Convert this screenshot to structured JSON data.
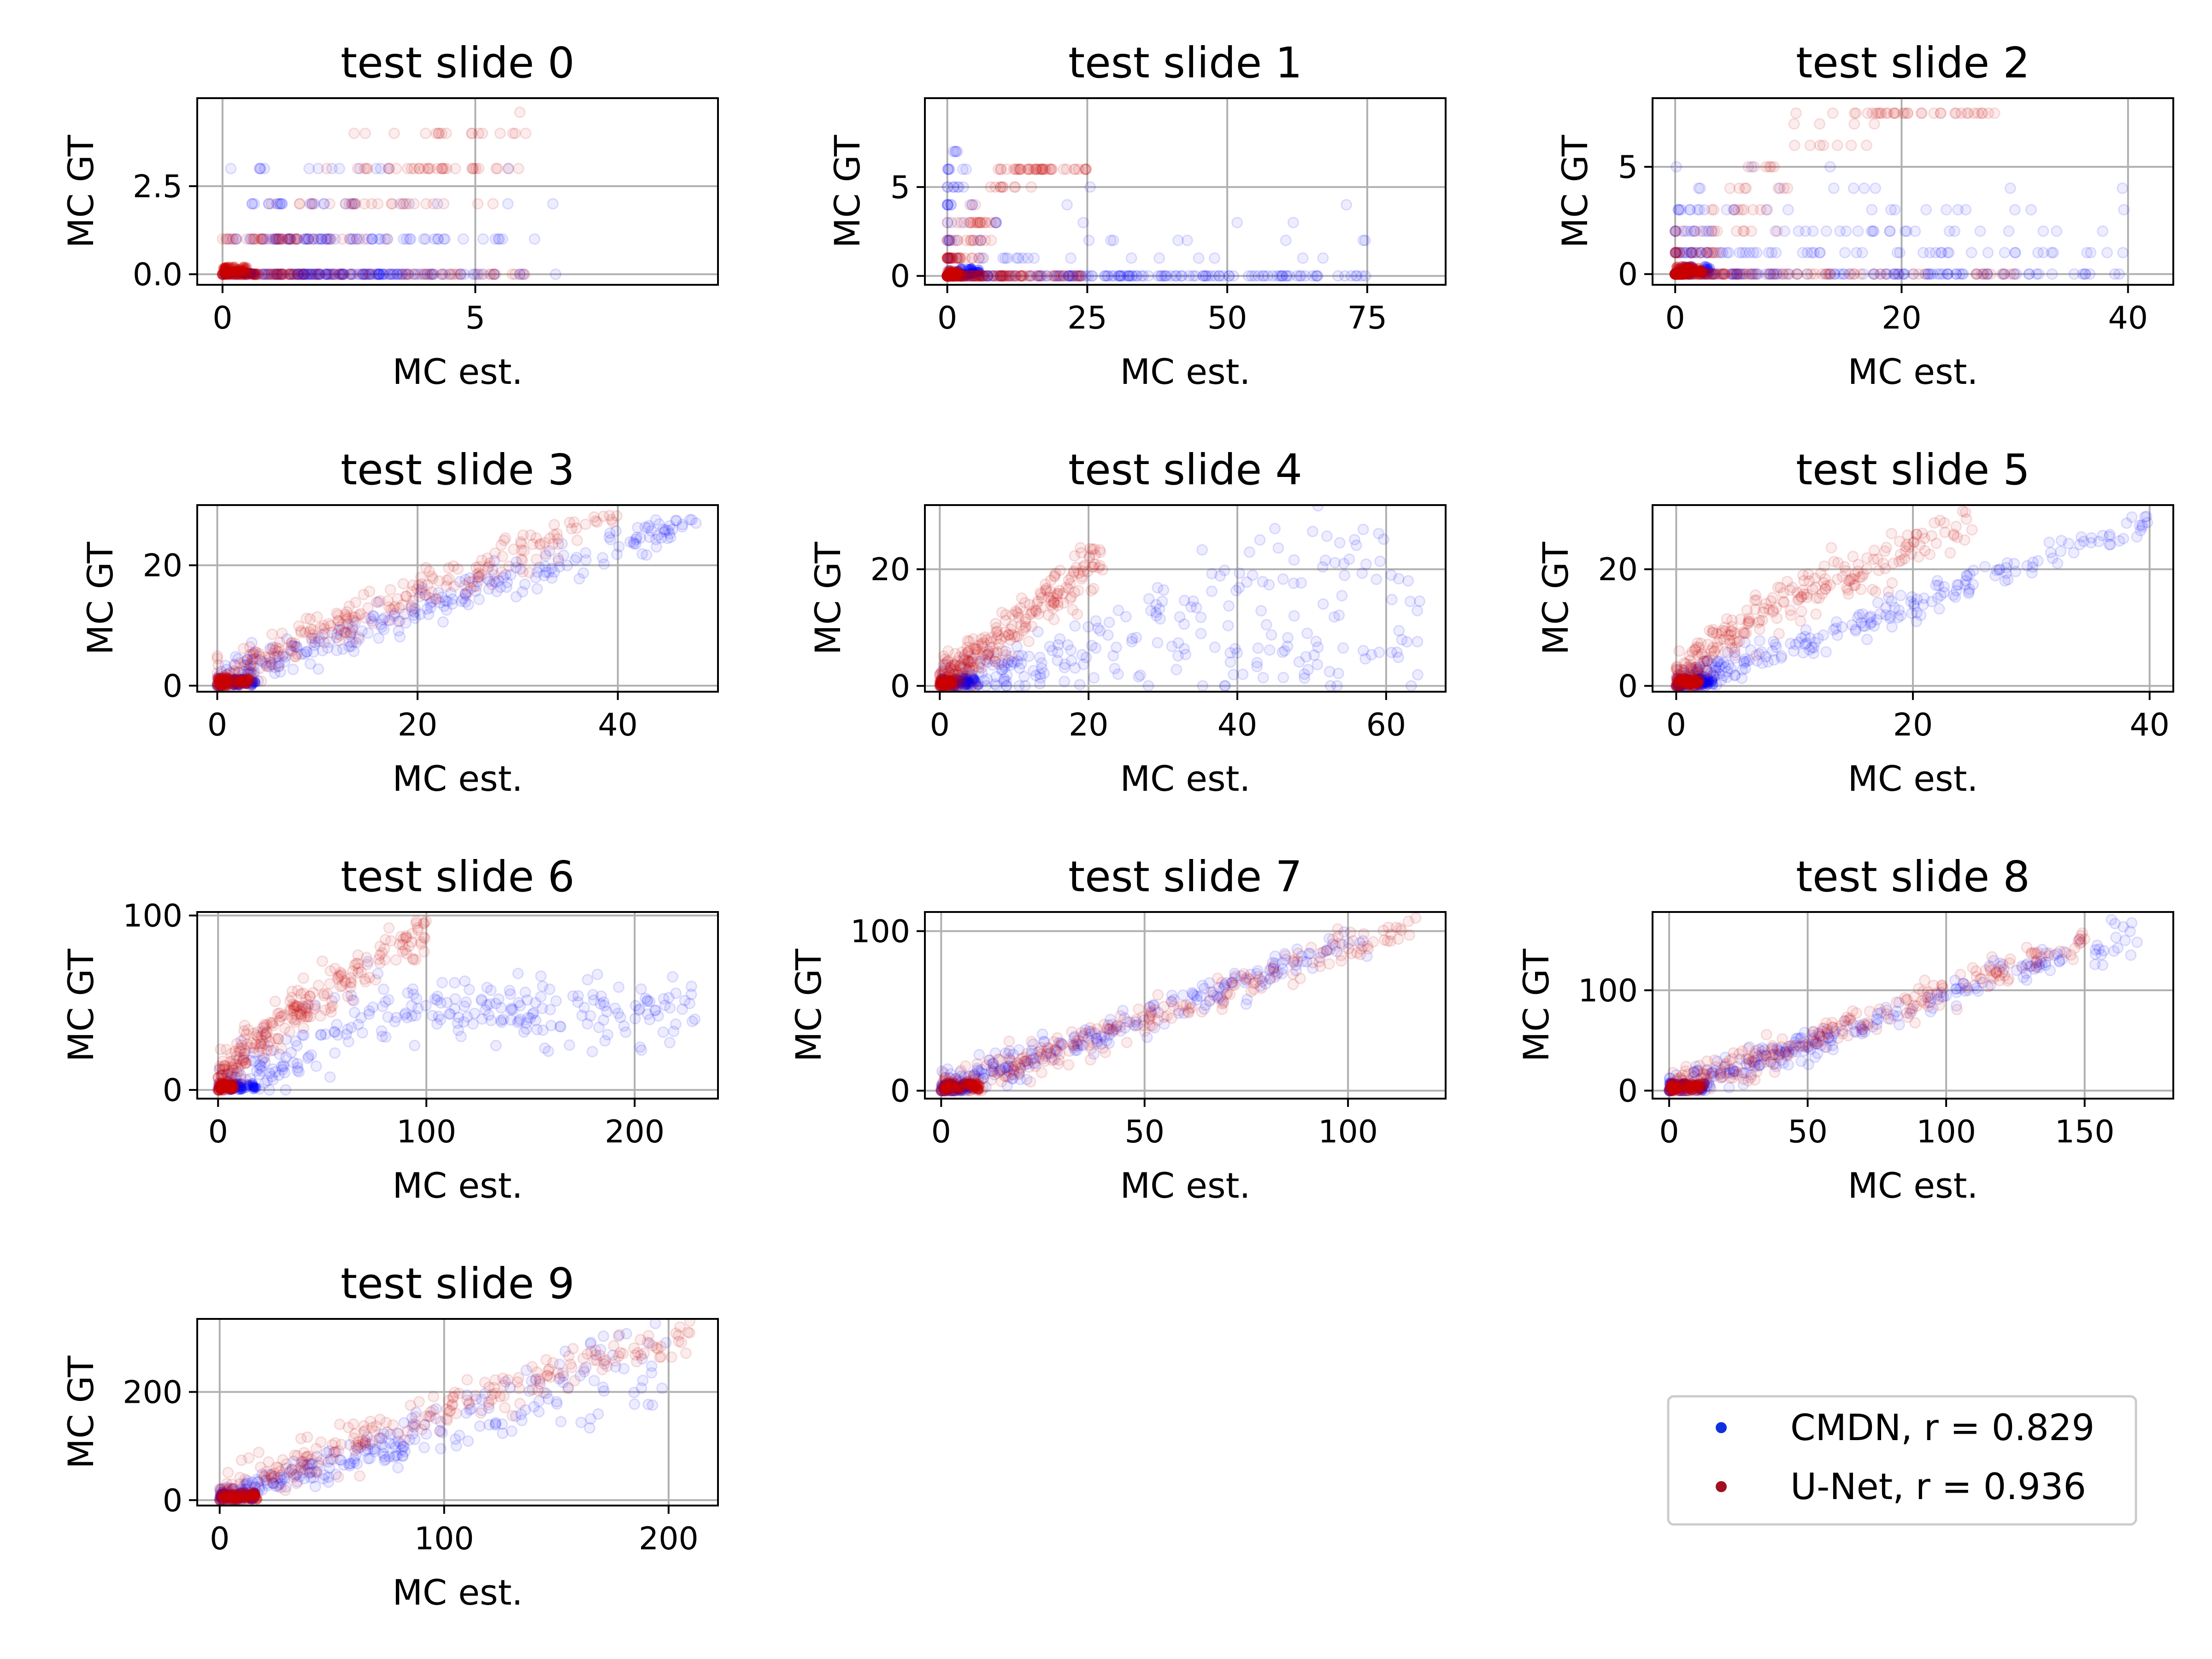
{
  "colors": {
    "cmdn": "#0000ff",
    "unet": "#cc0000",
    "legend_cmdn": "#1030e0",
    "legend_unet": "#a01020",
    "grid": "#b0b0b0"
  },
  "legend": {
    "placement": "lower-right",
    "entries": [
      {
        "label": "CMDN, r = 0.829",
        "color": "#1030e0"
      },
      {
        "label": "U-Net, r = 0.936",
        "color": "#a01020"
      }
    ]
  },
  "chart_data": [
    {
      "type": "scatter",
      "title": "test slide 0",
      "xlabel": "MC est.",
      "ylabel": "MC GT",
      "xlim": [
        -0.5,
        9.8
      ],
      "ylim": [
        -0.3,
        5.0
      ],
      "xticks": [
        0,
        5
      ],
      "xtick_labels": [
        "0",
        "5"
      ],
      "yticks": [
        0,
        2.5
      ],
      "ytick_labels": [
        "0.0",
        "2.5"
      ],
      "grid": true,
      "series": [
        {
          "name": "CMDN",
          "cluster": "zeros-and-integer-rows",
          "x_range": [
            0,
            8
          ],
          "y_values": [
            0,
            1,
            2,
            3
          ]
        },
        {
          "name": "U-Net",
          "cluster": "diagonal-spread",
          "x_range": [
            0,
            6
          ],
          "y_range": [
            0,
            4.6
          ]
        }
      ]
    },
    {
      "type": "scatter",
      "title": "test slide 1",
      "xlabel": "MC est.",
      "ylabel": "MC GT",
      "xlim": [
        -4,
        89
      ],
      "ylim": [
        -0.5,
        10
      ],
      "xticks": [
        0,
        25,
        50,
        75
      ],
      "xtick_labels": [
        "0",
        "25",
        "50",
        "75"
      ],
      "yticks": [
        0,
        5
      ],
      "ytick_labels": [
        "0",
        "5"
      ],
      "grid": true,
      "series": [
        {
          "name": "CMDN",
          "cluster": "long-zero-row",
          "x_range": [
            0,
            75
          ],
          "y_range": [
            0,
            9
          ]
        },
        {
          "name": "U-Net",
          "cluster": "steep-near-zero",
          "x_range": [
            0,
            25
          ],
          "y_range": [
            0,
            6
          ]
        }
      ]
    },
    {
      "type": "scatter",
      "title": "test slide 2",
      "xlabel": "MC est.",
      "ylabel": "MC GT",
      "xlim": [
        -2,
        44
      ],
      "ylim": [
        -0.5,
        8.2
      ],
      "xticks": [
        0,
        20,
        40
      ],
      "xtick_labels": [
        "0",
        "20",
        "40"
      ],
      "yticks": [
        0,
        5
      ],
      "ytick_labels": [
        "0",
        "5"
      ],
      "grid": true,
      "series": [
        {
          "name": "CMDN",
          "cluster": "integer-rows",
          "x_range": [
            0,
            40
          ],
          "y_range": [
            0,
            7.5
          ]
        },
        {
          "name": "U-Net",
          "cluster": "steep-near-zero",
          "x_range": [
            0,
            30
          ],
          "y_range": [
            0,
            7.5
          ]
        }
      ]
    },
    {
      "type": "scatter",
      "title": "test slide 3",
      "xlabel": "MC est.",
      "ylabel": "MC GT",
      "xlim": [
        -2,
        50
      ],
      "ylim": [
        -1,
        30
      ],
      "xticks": [
        0,
        20,
        40
      ],
      "xtick_labels": [
        "0",
        "20",
        "40"
      ],
      "yticks": [
        0,
        20
      ],
      "ytick_labels": [
        "0",
        "20"
      ],
      "grid": true,
      "series": [
        {
          "name": "CMDN",
          "cluster": "curve",
          "x_range": [
            0,
            48
          ],
          "y_range": [
            0,
            27
          ]
        },
        {
          "name": "U-Net",
          "cluster": "curve",
          "x_range": [
            0,
            40
          ],
          "y_range": [
            0,
            28
          ]
        }
      ]
    },
    {
      "type": "scatter",
      "title": "test slide 4",
      "xlabel": "MC est.",
      "ylabel": "MC GT",
      "xlim": [
        -2,
        68
      ],
      "ylim": [
        -1,
        31
      ],
      "xticks": [
        0,
        20,
        40,
        60
      ],
      "xtick_labels": [
        "0",
        "20",
        "40",
        "60"
      ],
      "yticks": [
        0,
        20
      ],
      "ytick_labels": [
        "0",
        "20"
      ],
      "grid": true,
      "series": [
        {
          "name": "CMDN",
          "cluster": "wide-spread",
          "x_range": [
            0,
            65
          ],
          "y_range": [
            0,
            28
          ]
        },
        {
          "name": "U-Net",
          "cluster": "steep-line",
          "x_range": [
            0,
            22
          ],
          "y_range": [
            0,
            22
          ]
        }
      ]
    },
    {
      "type": "scatter",
      "title": "test slide 5",
      "xlabel": "MC est.",
      "ylabel": "MC GT",
      "xlim": [
        -2,
        42
      ],
      "ylim": [
        -1,
        31
      ],
      "xticks": [
        0,
        20,
        40
      ],
      "xtick_labels": [
        "0",
        "20",
        "40"
      ],
      "yticks": [
        0,
        20
      ],
      "ytick_labels": [
        "0",
        "20"
      ],
      "grid": true,
      "series": [
        {
          "name": "CMDN",
          "cluster": "line",
          "x_range": [
            0,
            40
          ],
          "y_range": [
            0,
            28
          ]
        },
        {
          "name": "U-Net",
          "cluster": "steep-curve",
          "x_range": [
            0,
            25
          ],
          "y_range": [
            0,
            28
          ]
        }
      ]
    },
    {
      "type": "scatter",
      "title": "test slide 6",
      "xlabel": "MC est.",
      "ylabel": "MC GT",
      "xlim": [
        -10,
        240
      ],
      "ylim": [
        -5,
        102
      ],
      "xticks": [
        0,
        100,
        200
      ],
      "xtick_labels": [
        "0",
        "100",
        "200"
      ],
      "yticks": [
        0,
        100
      ],
      "ytick_labels": [
        "0",
        "100"
      ],
      "grid": true,
      "series": [
        {
          "name": "CMDN",
          "cluster": "plateau",
          "x_range": [
            0,
            230
          ],
          "y_range": [
            0,
            80
          ]
        },
        {
          "name": "U-Net",
          "cluster": "steep-curve",
          "x_range": [
            0,
            100
          ],
          "y_range": [
            0,
            90
          ]
        }
      ]
    },
    {
      "type": "scatter",
      "title": "test slide 7",
      "xlabel": "MC est.",
      "ylabel": "MC GT",
      "xlim": [
        -4,
        124
      ],
      "ylim": [
        -5,
        112
      ],
      "xticks": [
        0,
        50,
        100
      ],
      "xtick_labels": [
        "0",
        "50",
        "100"
      ],
      "yticks": [
        0,
        100
      ],
      "ytick_labels": [
        "0",
        "100"
      ],
      "grid": true,
      "series": [
        {
          "name": "CMDN",
          "cluster": "line",
          "x_range": [
            0,
            105
          ],
          "y_range": [
            0,
            95
          ]
        },
        {
          "name": "U-Net",
          "cluster": "line",
          "x_range": [
            0,
            118
          ],
          "y_range": [
            0,
            105
          ]
        }
      ]
    },
    {
      "type": "scatter",
      "title": "test slide 8",
      "xlabel": "MC est.",
      "ylabel": "MC GT",
      "xlim": [
        -6,
        182
      ],
      "ylim": [
        -8,
        178
      ],
      "xticks": [
        0,
        50,
        100,
        150
      ],
      "xtick_labels": [
        "0",
        "50",
        "100",
        "150"
      ],
      "yticks": [
        0,
        100
      ],
      "ytick_labels": [
        "0",
        "100"
      ],
      "grid": true,
      "series": [
        {
          "name": "CMDN",
          "cluster": "line",
          "x_range": [
            0,
            170
          ],
          "y_range": [
            0,
            160
          ]
        },
        {
          "name": "U-Net",
          "cluster": "line",
          "x_range": [
            0,
            150
          ],
          "y_range": [
            0,
            150
          ]
        }
      ]
    },
    {
      "type": "scatter",
      "title": "test slide 9",
      "xlabel": "MC est.",
      "ylabel": "MC GT",
      "xlim": [
        -10,
        222
      ],
      "ylim": [
        -10,
        335
      ],
      "xticks": [
        0,
        100,
        200
      ],
      "xtick_labels": [
        "0",
        "100",
        "200"
      ],
      "yticks": [
        0,
        200
      ],
      "ytick_labels": [
        "0",
        "200"
      ],
      "grid": true,
      "series": [
        {
          "name": "CMDN",
          "cluster": "spread-curve",
          "x_range": [
            0,
            200
          ],
          "y_range": [
            0,
            300
          ]
        },
        {
          "name": "U-Net",
          "cluster": "curve",
          "x_range": [
            0,
            210
          ],
          "y_range": [
            0,
            310
          ]
        }
      ]
    }
  ]
}
